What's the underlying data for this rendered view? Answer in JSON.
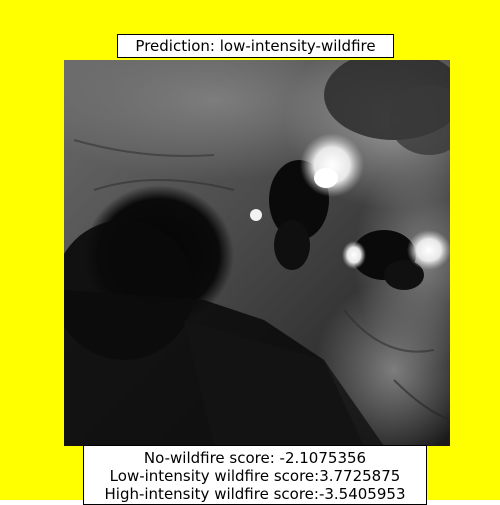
{
  "colors": {
    "background": "#ffff00",
    "frame": "#000000",
    "label_background": "#ffffff"
  },
  "title": "Prediction: low-intensity-wildfire",
  "scores": {
    "no_wildfire": "No-wildfire score: -2.1075356",
    "low_intensity": "Low-intensity wildfire score:3.7725875",
    "high_intensity": "High-intensity wildfire score:-3.5405953"
  },
  "image": {
    "description_icon": "grayscale-satellite-image"
  }
}
